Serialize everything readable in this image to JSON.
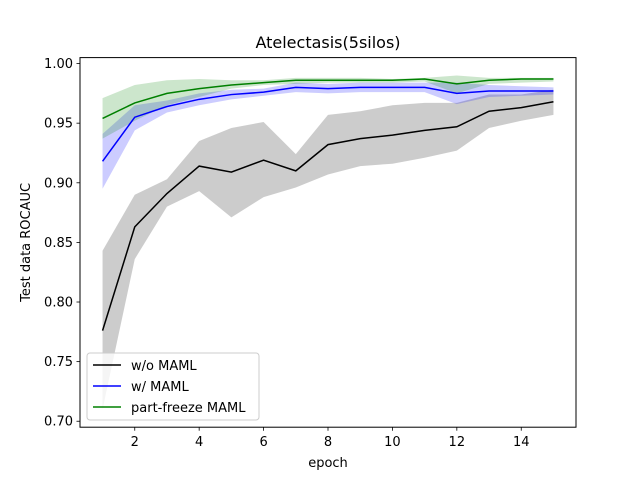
{
  "chart_data": {
    "type": "line",
    "title": "Atelectasis(5silos)",
    "xlabel": "epoch",
    "ylabel": "Test data ROCAUC",
    "xlim": [
      0.3,
      15.7
    ],
    "ylim": [
      0.695,
      1.005
    ],
    "x_ticks": [
      2,
      4,
      6,
      8,
      10,
      12,
      14
    ],
    "y_ticks": [
      0.7,
      0.75,
      0.8,
      0.85,
      0.9,
      0.95,
      1.0
    ],
    "x_tick_labels": [
      "2",
      "4",
      "6",
      "8",
      "10",
      "12",
      "14"
    ],
    "y_tick_labels": [
      "0.70",
      "0.75",
      "0.80",
      "0.85",
      "0.90",
      "0.95",
      "1.00"
    ],
    "grid": false,
    "legend_position": "lower-left",
    "x": [
      1,
      2,
      3,
      4,
      5,
      6,
      7,
      8,
      9,
      10,
      11,
      12,
      13,
      14,
      15
    ],
    "series": [
      {
        "name": "w/o MAML",
        "color": "#000000",
        "band_color": "#808080",
        "band_opacity": 0.4,
        "values": [
          0.776,
          0.863,
          0.891,
          0.914,
          0.909,
          0.919,
          0.91,
          0.932,
          0.937,
          0.94,
          0.944,
          0.947,
          0.96,
          0.963,
          0.968
        ],
        "lower": [
          0.71,
          0.836,
          0.88,
          0.893,
          0.871,
          0.888,
          0.896,
          0.907,
          0.914,
          0.916,
          0.921,
          0.927,
          0.946,
          0.952,
          0.957
        ],
        "upper": [
          0.843,
          0.89,
          0.903,
          0.935,
          0.946,
          0.951,
          0.924,
          0.957,
          0.96,
          0.965,
          0.967,
          0.967,
          0.974,
          0.974,
          0.978
        ]
      },
      {
        "name": "w/ MAML",
        "color": "#0000ff",
        "band_color": "#0000ff",
        "band_opacity": 0.2,
        "values": [
          0.918,
          0.955,
          0.964,
          0.97,
          0.974,
          0.976,
          0.98,
          0.979,
          0.98,
          0.98,
          0.98,
          0.975,
          0.977,
          0.977,
          0.977
        ],
        "lower": [
          0.895,
          0.944,
          0.959,
          0.965,
          0.97,
          0.973,
          0.976,
          0.975,
          0.976,
          0.976,
          0.976,
          0.966,
          0.972,
          0.973,
          0.974
        ],
        "upper": [
          0.941,
          0.965,
          0.969,
          0.975,
          0.978,
          0.979,
          0.984,
          0.983,
          0.984,
          0.984,
          0.984,
          0.984,
          0.982,
          0.981,
          0.98
        ]
      },
      {
        "name": "part-freeze MAML",
        "color": "#008000",
        "band_color": "#008000",
        "band_opacity": 0.2,
        "values": [
          0.954,
          0.967,
          0.975,
          0.979,
          0.982,
          0.984,
          0.986,
          0.986,
          0.986,
          0.986,
          0.987,
          0.983,
          0.986,
          0.987,
          0.987
        ],
        "lower": [
          0.937,
          0.952,
          0.965,
          0.972,
          0.979,
          0.982,
          0.983,
          0.984,
          0.984,
          0.984,
          0.985,
          0.975,
          0.983,
          0.984,
          0.985
        ],
        "upper": [
          0.971,
          0.982,
          0.986,
          0.987,
          0.986,
          0.986,
          0.988,
          0.988,
          0.988,
          0.987,
          0.988,
          0.99,
          0.988,
          0.988,
          0.988
        ]
      }
    ]
  }
}
